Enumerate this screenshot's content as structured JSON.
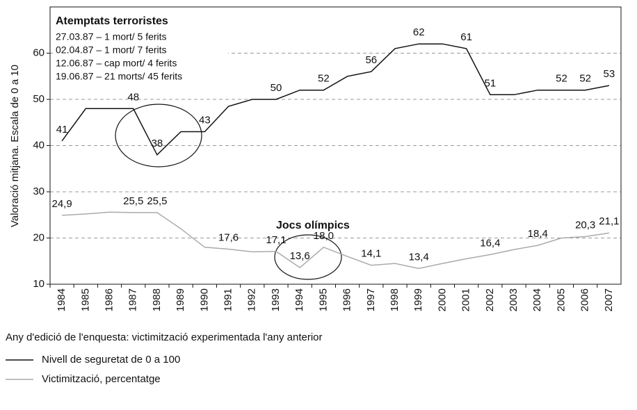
{
  "chart_data": {
    "type": "line",
    "y_label": "Valoració mitjana. Escala de 0 a 10",
    "x_label": "Any d'edició de l'enquesta: victimització experimentada l'any anterior",
    "categories": [
      "1984",
      "1985",
      "1986",
      "1987",
      "1988",
      "1989",
      "1990",
      "1991",
      "1992",
      "1993",
      "1994",
      "1995",
      "1996",
      "1997",
      "1998",
      "1999",
      "2000",
      "2001",
      "2002",
      "2003",
      "2004",
      "2005",
      "2006",
      "2007"
    ],
    "series": [
      {
        "name": "Nivell de seguretat de 0 a 100",
        "color": "#111111",
        "values": [
          41,
          48,
          48,
          48,
          38,
          43,
          43,
          48.5,
          50,
          50,
          52,
          52,
          55,
          56,
          61,
          62,
          62,
          61,
          51,
          51,
          52,
          52,
          52,
          53
        ],
        "value_labels": [
          "41",
          null,
          null,
          "48",
          "38",
          null,
          "43",
          null,
          null,
          "50",
          null,
          "52",
          null,
          "56",
          null,
          "62",
          null,
          "61",
          "51",
          null,
          null,
          "52",
          "52",
          "53"
        ]
      },
      {
        "name": "Victimització, percentatge",
        "color": "#aaaaaa",
        "values": [
          24.9,
          25.2,
          25.6,
          25.5,
          25.5,
          22,
          18,
          17.6,
          17,
          17.1,
          13.6,
          18.0,
          16,
          14.1,
          14.5,
          13.4,
          14.5,
          15.5,
          16.4,
          17.5,
          18.4,
          20,
          20.3,
          21.1
        ],
        "value_labels": [
          "24,9",
          null,
          null,
          "25,5",
          "25,5",
          null,
          null,
          "17,6",
          null,
          "17,1",
          "13,6",
          "18,0",
          null,
          "14,1",
          null,
          "13,4",
          null,
          null,
          "16,4",
          null,
          "18,4",
          null,
          "20,3",
          "21,1"
        ]
      }
    ],
    "ylim": [
      10,
      70
    ],
    "yticks": [
      10,
      20,
      30,
      40,
      50,
      60
    ],
    "grid": true,
    "annotations": {
      "attacks_title": "Atemptats terroristes",
      "attacks": [
        "27.03.87 – 1 mort/ 5 ferits",
        "02.04.87 – 1 mort/ 7 ferits",
        "12.06.87 – cap mort/ 4 ferits",
        "19.06.87 – 21 morts/ 45 ferits"
      ],
      "olympics": "Jocs olímpics"
    }
  }
}
